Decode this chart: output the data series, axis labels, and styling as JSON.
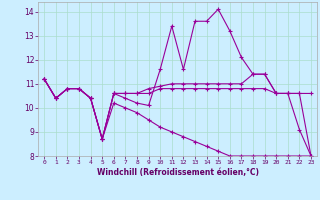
{
  "xlabel": "Windchill (Refroidissement éolien,°C)",
  "background_color": "#cceeff",
  "grid_color": "#aaddcc",
  "line_color": "#990099",
  "xlim": [
    -0.5,
    23.5
  ],
  "ylim": [
    8,
    14.4
  ],
  "xticks": [
    0,
    1,
    2,
    3,
    4,
    5,
    6,
    7,
    8,
    9,
    10,
    11,
    12,
    13,
    14,
    15,
    16,
    17,
    18,
    19,
    20,
    21,
    22,
    23
  ],
  "yticks": [
    8,
    9,
    10,
    11,
    12,
    13,
    14
  ],
  "series": [
    [
      11.2,
      10.4,
      10.8,
      10.8,
      10.4,
      8.7,
      10.6,
      10.4,
      10.2,
      10.1,
      11.6,
      13.4,
      11.6,
      13.6,
      13.6,
      14.1,
      13.2,
      12.1,
      11.4,
      11.4,
      10.6,
      10.6,
      9.1,
      8.0
    ],
    [
      11.2,
      10.4,
      10.8,
      10.8,
      10.4,
      8.7,
      10.6,
      10.6,
      10.6,
      10.8,
      10.9,
      11.0,
      11.0,
      11.0,
      11.0,
      11.0,
      11.0,
      11.0,
      11.4,
      11.4,
      10.6,
      10.6,
      10.6,
      10.6
    ],
    [
      11.2,
      10.4,
      10.8,
      10.8,
      10.4,
      8.7,
      10.6,
      10.6,
      10.6,
      10.6,
      10.8,
      10.8,
      10.8,
      10.8,
      10.8,
      10.8,
      10.8,
      10.8,
      10.8,
      10.8,
      10.6,
      10.6,
      10.6,
      8.0
    ],
    [
      11.2,
      10.4,
      10.8,
      10.8,
      10.4,
      8.7,
      10.2,
      10.0,
      9.8,
      9.5,
      9.2,
      9.0,
      8.8,
      8.6,
      8.4,
      8.2,
      8.0,
      8.0,
      8.0,
      8.0,
      8.0,
      8.0,
      8.0,
      8.0
    ]
  ]
}
